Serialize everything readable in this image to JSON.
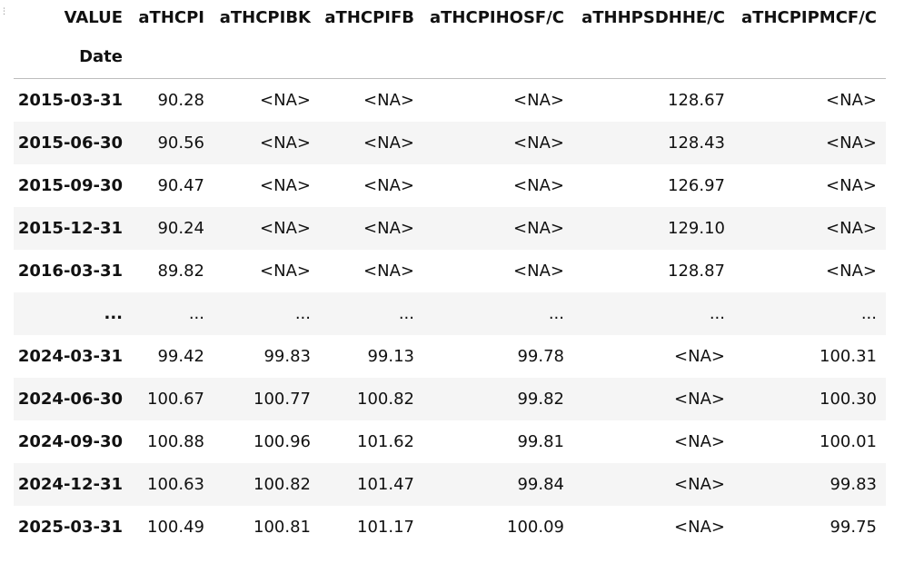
{
  "table": {
    "columns_name": "VALUE",
    "index_name": "Date",
    "columns": [
      "aTHCPI",
      "aTHCPIBK",
      "aTHCPIFB",
      "aTHCPIHOSF/C",
      "aTHHPSDHHE/C",
      "aTHCPIPMCF/C"
    ],
    "rows": [
      {
        "index": "2015-03-31",
        "cells": [
          "90.28",
          "<NA>",
          "<NA>",
          "<NA>",
          "128.67",
          "<NA>"
        ]
      },
      {
        "index": "2015-06-30",
        "cells": [
          "90.56",
          "<NA>",
          "<NA>",
          "<NA>",
          "128.43",
          "<NA>"
        ]
      },
      {
        "index": "2015-09-30",
        "cells": [
          "90.47",
          "<NA>",
          "<NA>",
          "<NA>",
          "126.97",
          "<NA>"
        ]
      },
      {
        "index": "2015-12-31",
        "cells": [
          "90.24",
          "<NA>",
          "<NA>",
          "<NA>",
          "129.10",
          "<NA>"
        ]
      },
      {
        "index": "2016-03-31",
        "cells": [
          "89.82",
          "<NA>",
          "<NA>",
          "<NA>",
          "128.87",
          "<NA>"
        ]
      },
      {
        "index": "...",
        "cells": [
          "...",
          "...",
          "...",
          "...",
          "...",
          "..."
        ]
      },
      {
        "index": "2024-03-31",
        "cells": [
          "99.42",
          "99.83",
          "99.13",
          "99.78",
          "<NA>",
          "100.31"
        ]
      },
      {
        "index": "2024-06-30",
        "cells": [
          "100.67",
          "100.77",
          "100.82",
          "99.82",
          "<NA>",
          "100.30"
        ]
      },
      {
        "index": "2024-09-30",
        "cells": [
          "100.88",
          "100.96",
          "101.62",
          "99.81",
          "<NA>",
          "100.01"
        ]
      },
      {
        "index": "2024-12-31",
        "cells": [
          "100.63",
          "100.82",
          "101.47",
          "99.84",
          "<NA>",
          "99.83"
        ]
      },
      {
        "index": "2025-03-31",
        "cells": [
          "100.49",
          "100.81",
          "101.17",
          "100.09",
          "<NA>",
          "99.75"
        ]
      }
    ]
  }
}
